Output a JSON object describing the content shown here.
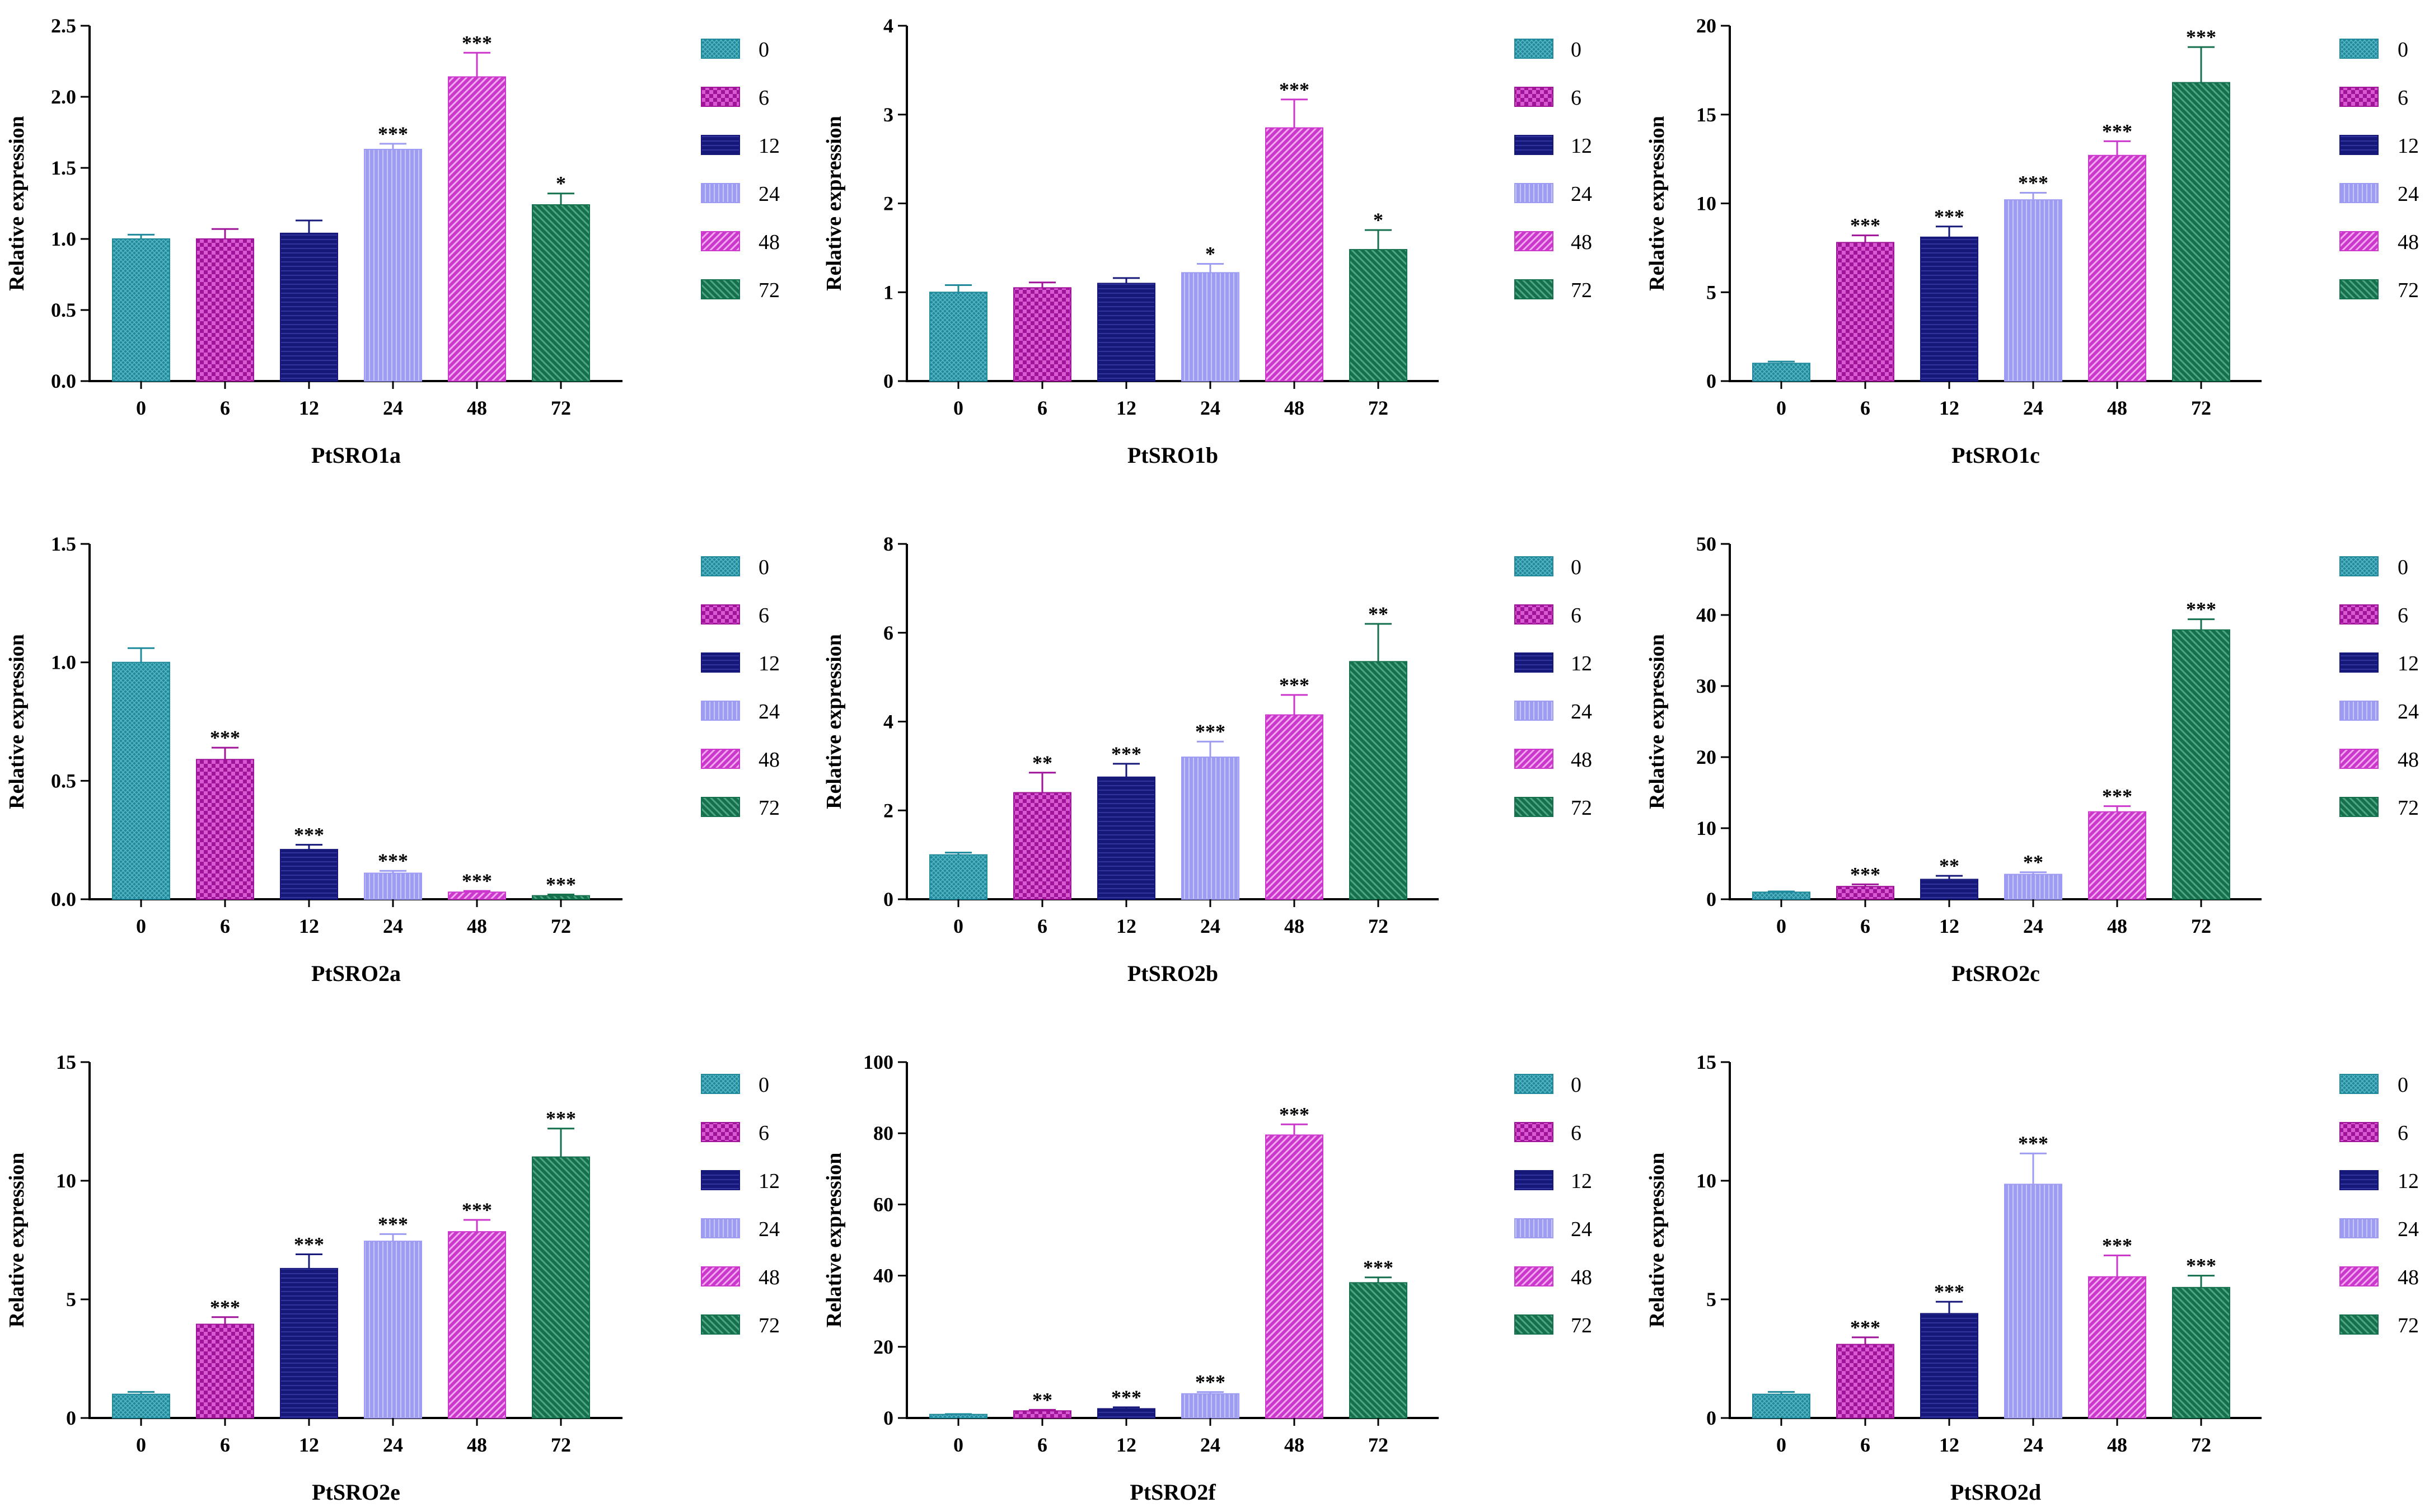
{
  "figure": {
    "categories": [
      "0",
      "6",
      "12",
      "24",
      "48",
      "72"
    ],
    "ylabel": "Relative expression",
    "legend_labels": [
      "0",
      "6",
      "12",
      "24",
      "48",
      "72"
    ],
    "series_colors": [
      "#1e8a9c",
      "#a0149a",
      "#16187a",
      "#9d9cf2",
      "#cc37cc",
      "#15704e"
    ]
  },
  "chart_data": [
    {
      "type": "bar",
      "title": "PtSRO1a",
      "ylabel": "Relative expression",
      "categories": [
        "0",
        "6",
        "12",
        "24",
        "48",
        "72"
      ],
      "values": [
        1.0,
        1.0,
        1.04,
        1.63,
        2.14,
        1.24
      ],
      "errors": [
        0.03,
        0.07,
        0.09,
        0.04,
        0.17,
        0.08
      ],
      "significance": [
        "",
        "",
        "",
        "***",
        "***",
        "*"
      ],
      "ylim": [
        0,
        2.5
      ],
      "yticks": [
        "0.0",
        "0.5",
        "1.0",
        "1.5",
        "2.0",
        "2.5"
      ],
      "legend": [
        "0",
        "6",
        "12",
        "24",
        "48",
        "72"
      ]
    },
    {
      "type": "bar",
      "title": "PtSRO1b",
      "ylabel": "Relative expression",
      "categories": [
        "0",
        "6",
        "12",
        "24",
        "48",
        "72"
      ],
      "values": [
        1.0,
        1.05,
        1.1,
        1.22,
        2.85,
        1.48
      ],
      "errors": [
        0.08,
        0.06,
        0.06,
        0.1,
        0.32,
        0.22
      ],
      "significance": [
        "",
        "",
        "",
        "*",
        "***",
        "*"
      ],
      "ylim": [
        0,
        4
      ],
      "yticks": [
        "0",
        "1",
        "2",
        "3",
        "4"
      ],
      "legend": [
        "0",
        "6",
        "12",
        "24",
        "48",
        "72"
      ]
    },
    {
      "type": "bar",
      "title": "PtSRO1c",
      "ylabel": "Relative expression",
      "categories": [
        "0",
        "6",
        "12",
        "24",
        "48",
        "72"
      ],
      "values": [
        1.0,
        7.8,
        8.1,
        10.2,
        12.7,
        16.8
      ],
      "errors": [
        0.1,
        0.4,
        0.6,
        0.4,
        0.8,
        2.0
      ],
      "significance": [
        "",
        "***",
        "***",
        "***",
        "***",
        "***"
      ],
      "ylim": [
        0,
        20
      ],
      "yticks": [
        "0",
        "5",
        "10",
        "15",
        "20"
      ],
      "legend": [
        "0",
        "6",
        "12",
        "24",
        "48",
        "72"
      ]
    },
    {
      "type": "bar",
      "title": "PtSRO2a",
      "ylabel": "Relative expression",
      "categories": [
        "0",
        "6",
        "12",
        "24",
        "48",
        "72"
      ],
      "values": [
        1.0,
        0.59,
        0.21,
        0.11,
        0.03,
        0.015
      ],
      "errors": [
        0.06,
        0.05,
        0.02,
        0.01,
        0.005,
        0.005
      ],
      "significance": [
        "",
        "***",
        "***",
        "***",
        "***",
        "***"
      ],
      "ylim": [
        0,
        1.5
      ],
      "yticks": [
        "0.0",
        "0.5",
        "1.0",
        "1.5"
      ],
      "legend": [
        "0",
        "6",
        "12",
        "24",
        "48",
        "72"
      ]
    },
    {
      "type": "bar",
      "title": "PtSRO2b",
      "ylabel": "Relative expression",
      "categories": [
        "0",
        "6",
        "12",
        "24",
        "48",
        "72"
      ],
      "values": [
        1.0,
        2.4,
        2.75,
        3.2,
        4.15,
        5.35
      ],
      "errors": [
        0.05,
        0.45,
        0.3,
        0.35,
        0.45,
        0.85
      ],
      "significance": [
        "",
        "**",
        "***",
        "***",
        "***",
        "**"
      ],
      "ylim": [
        0,
        8
      ],
      "yticks": [
        "0",
        "2",
        "4",
        "6",
        "8"
      ],
      "legend": [
        "0",
        "6",
        "12",
        "24",
        "48",
        "72"
      ]
    },
    {
      "type": "bar",
      "title": "PtSRO2c",
      "ylabel": "Relative expression",
      "categories": [
        "0",
        "6",
        "12",
        "24",
        "48",
        "72"
      ],
      "values": [
        1.0,
        1.8,
        2.8,
        3.5,
        12.3,
        37.9
      ],
      "errors": [
        0.1,
        0.3,
        0.5,
        0.3,
        0.8,
        1.5
      ],
      "significance": [
        "",
        "***",
        "**",
        "**",
        "***",
        "***"
      ],
      "ylim": [
        0,
        50
      ],
      "yticks": [
        "0",
        "10",
        "20",
        "30",
        "40",
        "50"
      ],
      "legend": [
        "0",
        "6",
        "12",
        "24",
        "48",
        "72"
      ]
    },
    {
      "type": "bar",
      "title": "PtSRO2e",
      "ylabel": "Relative expression",
      "categories": [
        "0",
        "6",
        "12",
        "24",
        "48",
        "72"
      ],
      "values": [
        1.0,
        3.95,
        6.3,
        7.45,
        7.85,
        11.0
      ],
      "errors": [
        0.1,
        0.3,
        0.6,
        0.3,
        0.5,
        1.2
      ],
      "significance": [
        "",
        "***",
        "***",
        "***",
        "***",
        "***"
      ],
      "ylim": [
        0,
        15
      ],
      "yticks": [
        "0",
        "5",
        "10",
        "15"
      ],
      "legend": [
        "0",
        "6",
        "12",
        "24",
        "48",
        "72"
      ]
    },
    {
      "type": "bar",
      "title": "PtSRO2f",
      "ylabel": "Relative expression",
      "categories": [
        "0",
        "6",
        "12",
        "24",
        "48",
        "72"
      ],
      "values": [
        1.0,
        2.0,
        2.6,
        6.8,
        79.5,
        38.0
      ],
      "errors": [
        0.1,
        0.3,
        0.4,
        0.5,
        3.0,
        1.5
      ],
      "significance": [
        "",
        "**",
        "***",
        "***",
        "***",
        "***"
      ],
      "ylim": [
        0,
        100
      ],
      "yticks": [
        "0",
        "20",
        "40",
        "60",
        "80",
        "100"
      ],
      "legend": [
        "0",
        "6",
        "12",
        "24",
        "48",
        "72"
      ]
    },
    {
      "type": "bar",
      "title": "PtSRO2d",
      "ylabel": "Relative expression",
      "categories": [
        "0",
        "6",
        "12",
        "24",
        "48",
        "72"
      ],
      "values": [
        1.0,
        3.1,
        4.4,
        9.85,
        5.95,
        5.5
      ],
      "errors": [
        0.1,
        0.3,
        0.5,
        1.3,
        0.9,
        0.5
      ],
      "significance": [
        "",
        "***",
        "***",
        "***",
        "***",
        "***"
      ],
      "ylim": [
        0,
        15
      ],
      "yticks": [
        "0",
        "5",
        "10",
        "15"
      ],
      "legend": [
        "0",
        "6",
        "12",
        "24",
        "48",
        "72"
      ]
    }
  ]
}
